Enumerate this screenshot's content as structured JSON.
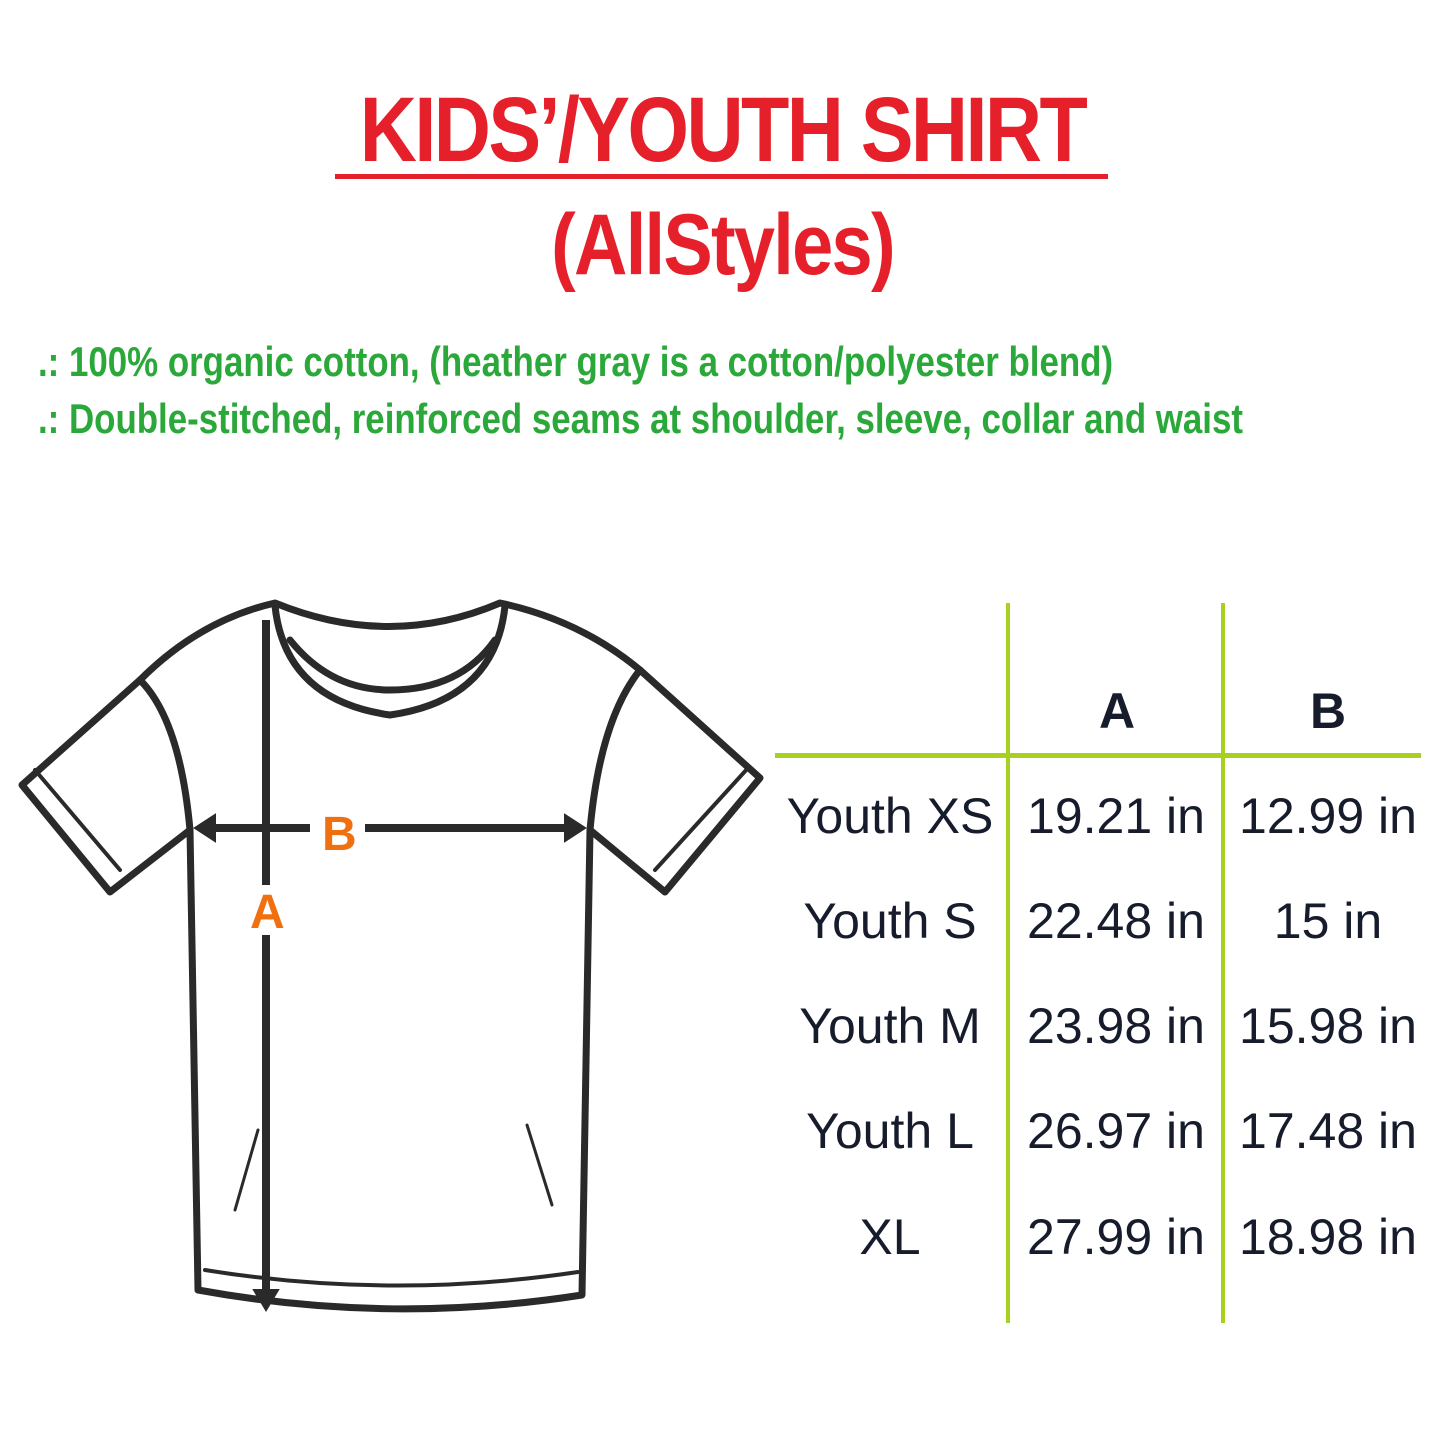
{
  "title": "KIDS’/YOUTH SHIRT",
  "subtitle": "(AllStyles)",
  "features": [
    ".: 100% organic cotton, (heather gray is a cotton/polyester blend)",
    ".: Double-stitched, reinforced seams at shoulder, sleeve, collar and waist"
  ],
  "diagram": {
    "label_a": "A",
    "label_b": "B"
  },
  "table": {
    "headers": [
      "",
      "A",
      "B"
    ],
    "rows": [
      {
        "size": "Youth XS",
        "a": "19.21 in",
        "b": "12.99 in"
      },
      {
        "size": "Youth S",
        "a": "22.48 in",
        "b": "15 in"
      },
      {
        "size": "Youth M",
        "a": "23.98 in",
        "b": "15.98 in"
      },
      {
        "size": "Youth L",
        "a": "26.97 in",
        "b": "17.48 in"
      },
      {
        "size": "XL",
        "a": "27.99 in",
        "b": "18.98 in"
      }
    ]
  },
  "colors": {
    "title": "#e5202a",
    "features": "#2aa83a",
    "grid": "#a8d01e",
    "labels": "#f07010",
    "text": "#161c2c"
  }
}
